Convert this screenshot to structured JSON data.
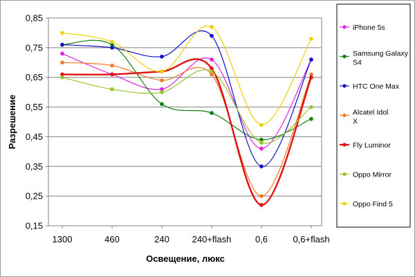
{
  "chart_data": {
    "type": "line",
    "title": "",
    "xlabel": "Освещение, люкс",
    "ylabel": "Разрешение",
    "categories": [
      "1300",
      "460",
      "240",
      "240+flash",
      "0,6",
      "0,6+flash"
    ],
    "y_ticks": [
      "0,15",
      "0,25",
      "0,35",
      "0,45",
      "0,55",
      "0,65",
      "0,75",
      "0,85"
    ],
    "ylim": [
      0.15,
      0.85
    ],
    "smooth": true,
    "grid": "horizontal",
    "legend_position": "right",
    "series": [
      {
        "name": "iPhone 5s",
        "color": "#e020e0",
        "values": [
          0.73,
          0.66,
          0.61,
          0.71,
          0.41,
          0.71
        ]
      },
      {
        "name": "Samsung Galaxy S4",
        "color": "#108010",
        "values": [
          0.76,
          0.76,
          0.56,
          0.53,
          0.44,
          0.51
        ]
      },
      {
        "name": "HTC One Max",
        "color": "#1010c8",
        "values": [
          0.76,
          0.75,
          0.72,
          0.79,
          0.35,
          0.71
        ]
      },
      {
        "name": "Alcatel Idol X",
        "color": "#f07828",
        "values": [
          0.7,
          0.69,
          0.64,
          0.66,
          0.25,
          0.66
        ]
      },
      {
        "name": "Fly Luminor",
        "color": "#e01010",
        "values": [
          0.66,
          0.66,
          0.67,
          0.68,
          0.22,
          0.65
        ]
      },
      {
        "name": "Oppo Mirror",
        "color": "#98c828",
        "values": [
          0.65,
          0.61,
          0.6,
          0.67,
          0.43,
          0.55
        ]
      },
      {
        "name": "Oppo Find 5",
        "color": "#f0d000",
        "values": [
          0.8,
          0.77,
          0.67,
          0.82,
          0.49,
          0.78
        ]
      }
    ]
  }
}
